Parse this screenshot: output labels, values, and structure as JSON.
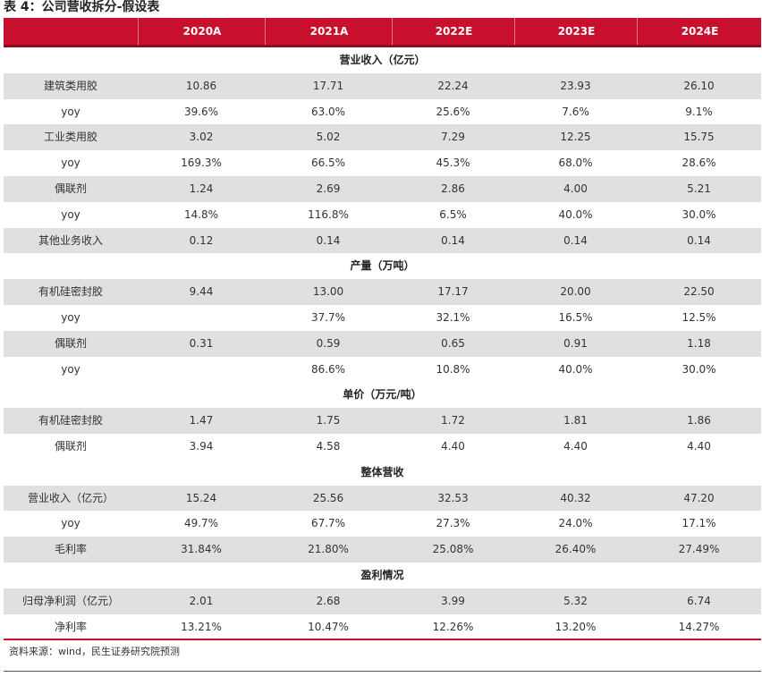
{
  "title": "表 4：公司营收拆分-假设表",
  "header": {
    "blank": "",
    "years": [
      "2020A",
      "2021A",
      "2022E",
      "2023E",
      "2024E"
    ]
  },
  "rows": [
    {
      "kind": "section",
      "label": "营业收入（亿元）"
    },
    {
      "kind": "data",
      "shade": true,
      "label": "建筑类用胶",
      "values": [
        "10.86",
        "17.71",
        "22.24",
        "23.93",
        "26.10"
      ]
    },
    {
      "kind": "data",
      "shade": false,
      "label": "yoy",
      "values": [
        "39.6%",
        "63.0%",
        "25.6%",
        "7.6%",
        "9.1%"
      ]
    },
    {
      "kind": "data",
      "shade": true,
      "label": "工业类用胶",
      "values": [
        "3.02",
        "5.02",
        "7.29",
        "12.25",
        "15.75"
      ]
    },
    {
      "kind": "data",
      "shade": false,
      "label": "yoy",
      "values": [
        "169.3%",
        "66.5%",
        "45.3%",
        "68.0%",
        "28.6%"
      ]
    },
    {
      "kind": "data",
      "shade": true,
      "label": "偶联剂",
      "values": [
        "1.24",
        "2.69",
        "2.86",
        "4.00",
        "5.21"
      ]
    },
    {
      "kind": "data",
      "shade": false,
      "label": "yoy",
      "values": [
        "14.8%",
        "116.8%",
        "6.5%",
        "40.0%",
        "30.0%"
      ]
    },
    {
      "kind": "data",
      "shade": true,
      "label": "其他业务收入",
      "values": [
        "0.12",
        "0.14",
        "0.14",
        "0.14",
        "0.14"
      ]
    },
    {
      "kind": "section",
      "label": "产量（万吨）"
    },
    {
      "kind": "data",
      "shade": true,
      "label": "有机硅密封胶",
      "values": [
        "9.44",
        "13.00",
        "17.17",
        "20.00",
        "22.50"
      ]
    },
    {
      "kind": "data",
      "shade": false,
      "label": "yoy",
      "values": [
        "",
        "37.7%",
        "32.1%",
        "16.5%",
        "12.5%"
      ]
    },
    {
      "kind": "data",
      "shade": true,
      "label": "偶联剂",
      "values": [
        "0.31",
        "0.59",
        "0.65",
        "0.91",
        "1.18"
      ]
    },
    {
      "kind": "data",
      "shade": false,
      "label": "yoy",
      "values": [
        "",
        "86.6%",
        "10.8%",
        "40.0%",
        "30.0%"
      ]
    },
    {
      "kind": "section",
      "label": "单价（万元/吨）"
    },
    {
      "kind": "data",
      "shade": true,
      "label": "有机硅密封胶",
      "values": [
        "1.47",
        "1.75",
        "1.72",
        "1.81",
        "1.86"
      ]
    },
    {
      "kind": "data",
      "shade": false,
      "label": "偶联剂",
      "values": [
        "3.94",
        "4.58",
        "4.40",
        "4.40",
        "4.40"
      ]
    },
    {
      "kind": "section",
      "label": "整体营收"
    },
    {
      "kind": "data",
      "shade": true,
      "label": "营业收入（亿元）",
      "values": [
        "15.24",
        "25.56",
        "32.53",
        "40.32",
        "47.20"
      ]
    },
    {
      "kind": "data",
      "shade": false,
      "label": "yoy",
      "values": [
        "49.7%",
        "67.7%",
        "27.3%",
        "24.0%",
        "17.1%"
      ]
    },
    {
      "kind": "data",
      "shade": true,
      "label": "毛利率",
      "values": [
        "31.84%",
        "21.80%",
        "25.08%",
        "26.40%",
        "27.49%"
      ]
    },
    {
      "kind": "section",
      "label": "盈利情况"
    },
    {
      "kind": "data",
      "shade": true,
      "label": "归母净利润（亿元）",
      "values": [
        "2.01",
        "2.68",
        "3.99",
        "5.32",
        "6.74"
      ]
    },
    {
      "kind": "data",
      "shade": false,
      "label": "净利率",
      "values": [
        "13.21%",
        "10.47%",
        "12.26%",
        "13.20%",
        "14.27%"
      ]
    }
  ],
  "source": "资料来源：wind，民生证券研究院预测",
  "colors": {
    "header_bg": "#c8102e",
    "row_shade": "#e0e0e0"
  }
}
